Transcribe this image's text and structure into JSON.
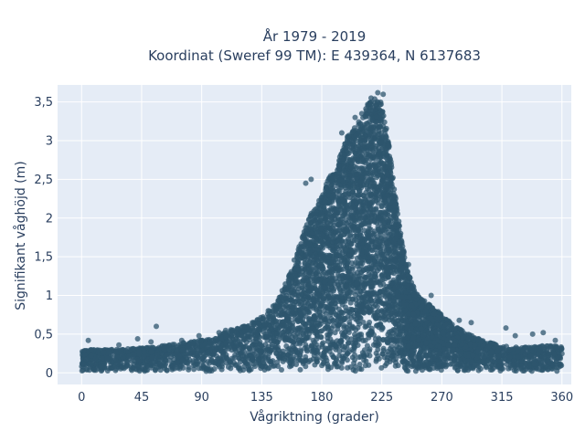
{
  "chart_data": {
    "type": "scatter",
    "title_line1": "År 1979 - 2019",
    "title_line2": "Koordinat (Sweref 99 TM): E 439364, N 6137683",
    "xlabel": "Vågriktning (grader)",
    "ylabel": "Signifikant våghöjd (m)",
    "xlim": [
      -18,
      367
    ],
    "ylim": [
      -0.15,
      3.72
    ],
    "x_ticks": [
      0,
      45,
      90,
      135,
      180,
      225,
      270,
      315,
      360
    ],
    "x_tick_labels": [
      "0",
      "45",
      "90",
      "135",
      "180",
      "225",
      "270",
      "315",
      "360"
    ],
    "y_ticks": [
      0,
      0.5,
      1,
      1.5,
      2,
      2.5,
      3,
      3.5
    ],
    "y_tick_labels": [
      "0",
      "0,5",
      "1",
      "1,5",
      "2",
      "2,5",
      "3",
      "3,5"
    ],
    "grid": true,
    "colors": {
      "marker": "#2e566e",
      "plot_background": "#e5ecf6",
      "grid": "#ffffff"
    },
    "envelope": {
      "x": [
        0,
        20,
        45,
        60,
        80,
        100,
        110,
        125,
        135,
        145,
        150,
        155,
        160,
        165,
        170,
        175,
        180,
        185,
        190,
        195,
        200,
        205,
        210,
        215,
        220,
        225,
        230,
        235,
        240,
        245,
        250,
        255,
        260,
        270,
        280,
        290,
        300,
        315,
        330,
        345,
        360
      ],
      "y": [
        0.3,
        0.3,
        0.32,
        0.35,
        0.4,
        0.45,
        0.55,
        0.62,
        0.72,
        0.9,
        1.05,
        1.25,
        1.5,
        1.75,
        2.0,
        2.15,
        2.3,
        2.5,
        2.65,
        2.85,
        3.1,
        3.25,
        3.3,
        3.5,
        3.55,
        3.5,
        3.0,
        2.3,
        1.7,
        1.3,
        1.05,
        0.95,
        0.9,
        0.75,
        0.6,
        0.5,
        0.42,
        0.35,
        0.33,
        0.35,
        0.35
      ]
    },
    "outliers": [
      {
        "x": 5,
        "y": 0.42
      },
      {
        "x": 28,
        "y": 0.36
      },
      {
        "x": 42,
        "y": 0.44
      },
      {
        "x": 52,
        "y": 0.4
      },
      {
        "x": 56,
        "y": 0.6
      },
      {
        "x": 75,
        "y": 0.42
      },
      {
        "x": 88,
        "y": 0.48
      },
      {
        "x": 98,
        "y": 0.42
      },
      {
        "x": 103,
        "y": 0.52
      },
      {
        "x": 108,
        "y": 0.55
      },
      {
        "x": 128,
        "y": 0.65
      },
      {
        "x": 168,
        "y": 2.45
      },
      {
        "x": 172,
        "y": 2.5
      },
      {
        "x": 195,
        "y": 3.1
      },
      {
        "x": 205,
        "y": 3.3
      },
      {
        "x": 210,
        "y": 3.35
      },
      {
        "x": 217,
        "y": 3.55
      },
      {
        "x": 222,
        "y": 3.62
      },
      {
        "x": 226,
        "y": 3.6
      },
      {
        "x": 245,
        "y": 1.4
      },
      {
        "x": 262,
        "y": 1.0
      },
      {
        "x": 283,
        "y": 0.68
      },
      {
        "x": 292,
        "y": 0.65
      },
      {
        "x": 318,
        "y": 0.58
      },
      {
        "x": 325,
        "y": 0.48
      },
      {
        "x": 338,
        "y": 0.5
      },
      {
        "x": 346,
        "y": 0.52
      },
      {
        "x": 355,
        "y": 0.42
      }
    ]
  }
}
